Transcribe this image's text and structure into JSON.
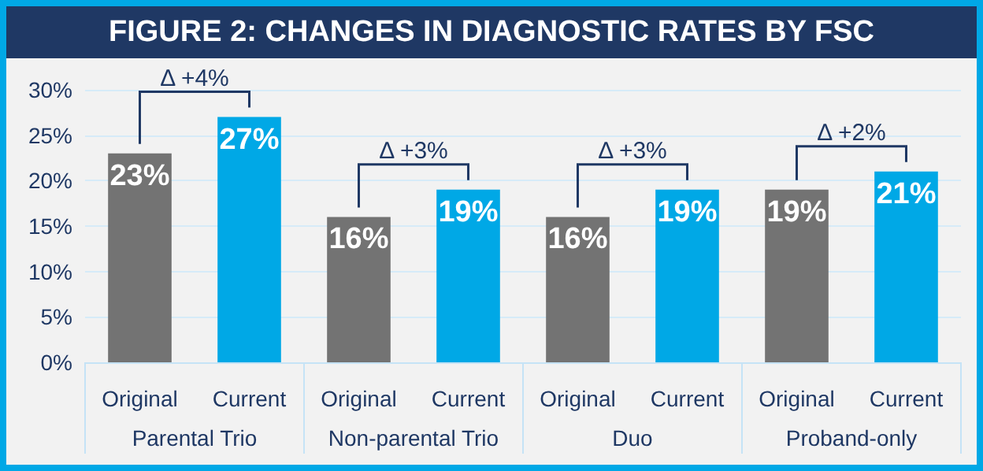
{
  "chart_data": {
    "type": "bar",
    "title": "FIGURE 2: CHANGES IN DIAGNOSTIC RATES BY FSC",
    "categories": [
      "Original",
      "Current",
      "Original",
      "Current",
      "Original",
      "Current",
      "Original",
      "Current"
    ],
    "values": [
      23,
      27,
      16,
      19,
      16,
      19,
      19,
      21
    ],
    "colors": [
      "#737373",
      "#00a8e6",
      "#737373",
      "#00a8e6",
      "#737373",
      "#00a8e6",
      "#737373",
      "#00a8e6"
    ],
    "value_labels": [
      "23%",
      "27%",
      "16%",
      "19%",
      "16%",
      "19%",
      "19%",
      "21%"
    ],
    "ylim": [
      0,
      30
    ],
    "yticks": [
      {
        "value": 0,
        "label": "0%"
      },
      {
        "value": 5,
        "label": "5%"
      },
      {
        "value": 10,
        "label": "10%"
      },
      {
        "value": 15,
        "label": "15%"
      },
      {
        "value": 20,
        "label": "20%"
      },
      {
        "value": 25,
        "label": "25%"
      },
      {
        "value": 30,
        "label": "30%"
      }
    ],
    "grid": "y",
    "annotations": [
      "Δ +4%",
      "Δ +3%",
      "Δ +3%",
      "Δ +2%",
      "Parental Trio",
      "Non-parental Trio",
      "Duo",
      "Proband-only"
    ]
  }
}
